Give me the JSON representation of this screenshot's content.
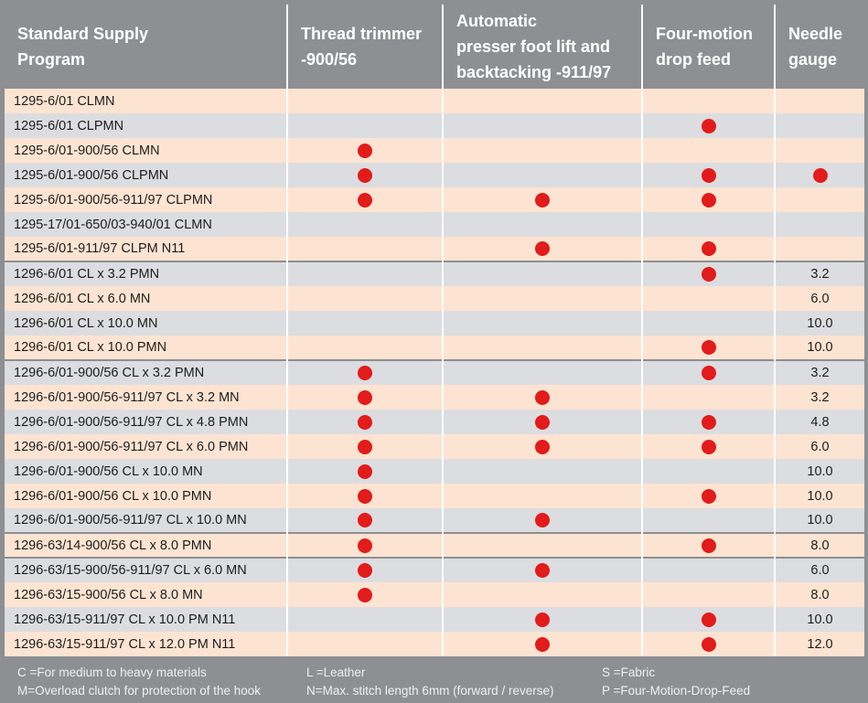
{
  "table": {
    "headers": [
      "Standard Supply\nProgram",
      "Thread trimmer\n-900/56",
      "Automatic\npresser foot lift and\nbacktacking -911/97",
      "Four-motion\ndrop feed",
      "Needle\ngauge"
    ],
    "rows": [
      {
        "program": "1295-6/01 CLMN",
        "trimmer": false,
        "lift": false,
        "feed": false,
        "gauge": ""
      },
      {
        "program": "1295-6/01 CLPMN",
        "trimmer": false,
        "lift": false,
        "feed": true,
        "gauge": ""
      },
      {
        "program": "1295-6/01-900/56 CLMN",
        "trimmer": true,
        "lift": false,
        "feed": false,
        "gauge": ""
      },
      {
        "program": "1295-6/01-900/56 CLPMN",
        "trimmer": true,
        "lift": false,
        "feed": true,
        "gauge": "",
        "gauge_dot": true
      },
      {
        "program": "1295-6/01-900/56-911/97 CLPMN",
        "trimmer": true,
        "lift": true,
        "feed": true,
        "gauge": ""
      },
      {
        "program": "1295-17/01-650/03-940/01 CLMN",
        "trimmer": false,
        "lift": false,
        "feed": false,
        "gauge": ""
      },
      {
        "program": "1295-6/01-911/97 CLPM N11",
        "trimmer": false,
        "lift": true,
        "feed": true,
        "gauge": ""
      },
      {
        "program": "1296-6/01 CL x 3.2 PMN",
        "trimmer": false,
        "lift": false,
        "feed": true,
        "gauge": "3.2",
        "group_start": true
      },
      {
        "program": "1296-6/01 CL x 6.0 MN",
        "trimmer": false,
        "lift": false,
        "feed": false,
        "gauge": "6.0"
      },
      {
        "program": "1296-6/01 CL x 10.0 MN",
        "trimmer": false,
        "lift": false,
        "feed": false,
        "gauge": "10.0"
      },
      {
        "program": "1296-6/01 CL x 10.0 PMN",
        "trimmer": false,
        "lift": false,
        "feed": true,
        "gauge": "10.0"
      },
      {
        "program": "1296-6/01-900/56 CL x 3.2 PMN",
        "trimmer": true,
        "lift": false,
        "feed": true,
        "gauge": "3.2",
        "group_start": true
      },
      {
        "program": "1296-6/01-900/56-911/97 CL x 3.2 MN",
        "trimmer": true,
        "lift": true,
        "feed": false,
        "gauge": "3.2"
      },
      {
        "program": "1296-6/01-900/56-911/97 CL x 4.8 PMN",
        "trimmer": true,
        "lift": true,
        "feed": true,
        "gauge": "4.8"
      },
      {
        "program": "1296-6/01-900/56-911/97 CL x 6.0 PMN",
        "trimmer": true,
        "lift": true,
        "feed": true,
        "gauge": "6.0"
      },
      {
        "program": "1296-6/01-900/56 CL x 10.0 MN",
        "trimmer": true,
        "lift": false,
        "feed": false,
        "gauge": "10.0"
      },
      {
        "program": "1296-6/01-900/56 CL x 10.0 PMN",
        "trimmer": true,
        "lift": false,
        "feed": true,
        "gauge": "10.0"
      },
      {
        "program": "1296-6/01-900/56-911/97 CL x 10.0 MN",
        "trimmer": true,
        "lift": true,
        "feed": false,
        "gauge": "10.0"
      },
      {
        "program": "1296-63/14-900/56 CL x 8.0 PMN",
        "trimmer": true,
        "lift": false,
        "feed": true,
        "gauge": "8.0",
        "group_start": true
      },
      {
        "program": "1296-63/15-900/56-911/97 CL x 6.0 MN",
        "trimmer": true,
        "lift": true,
        "feed": false,
        "gauge": "6.0",
        "group_start": true
      },
      {
        "program": "1296-63/15-900/56 CL x 8.0 MN",
        "trimmer": true,
        "lift": false,
        "feed": false,
        "gauge": "8.0"
      },
      {
        "program": "1296-63/15-911/97 CL x 10.0 PM N11",
        "trimmer": false,
        "lift": true,
        "feed": true,
        "gauge": "10.0"
      },
      {
        "program": "1296-63/15-911/97 CL x 12.0 PM N11",
        "trimmer": false,
        "lift": true,
        "feed": true,
        "gauge": "12.0"
      }
    ]
  },
  "legend": {
    "c": "C =For medium to heavy materials",
    "m": "M=Overload clutch for protection of the hook",
    "l": "L =Leather",
    "n": "N=Max. stitch length 6mm (forward / reverse)",
    "s": "S =Fabric",
    "p": "P =Four-Motion-Drop-Feed"
  },
  "colors": {
    "header_bg": "#8d8f93",
    "row_peach": "#fde4d2",
    "row_grey": "#dcdde0",
    "dot": "#e21b1b"
  }
}
